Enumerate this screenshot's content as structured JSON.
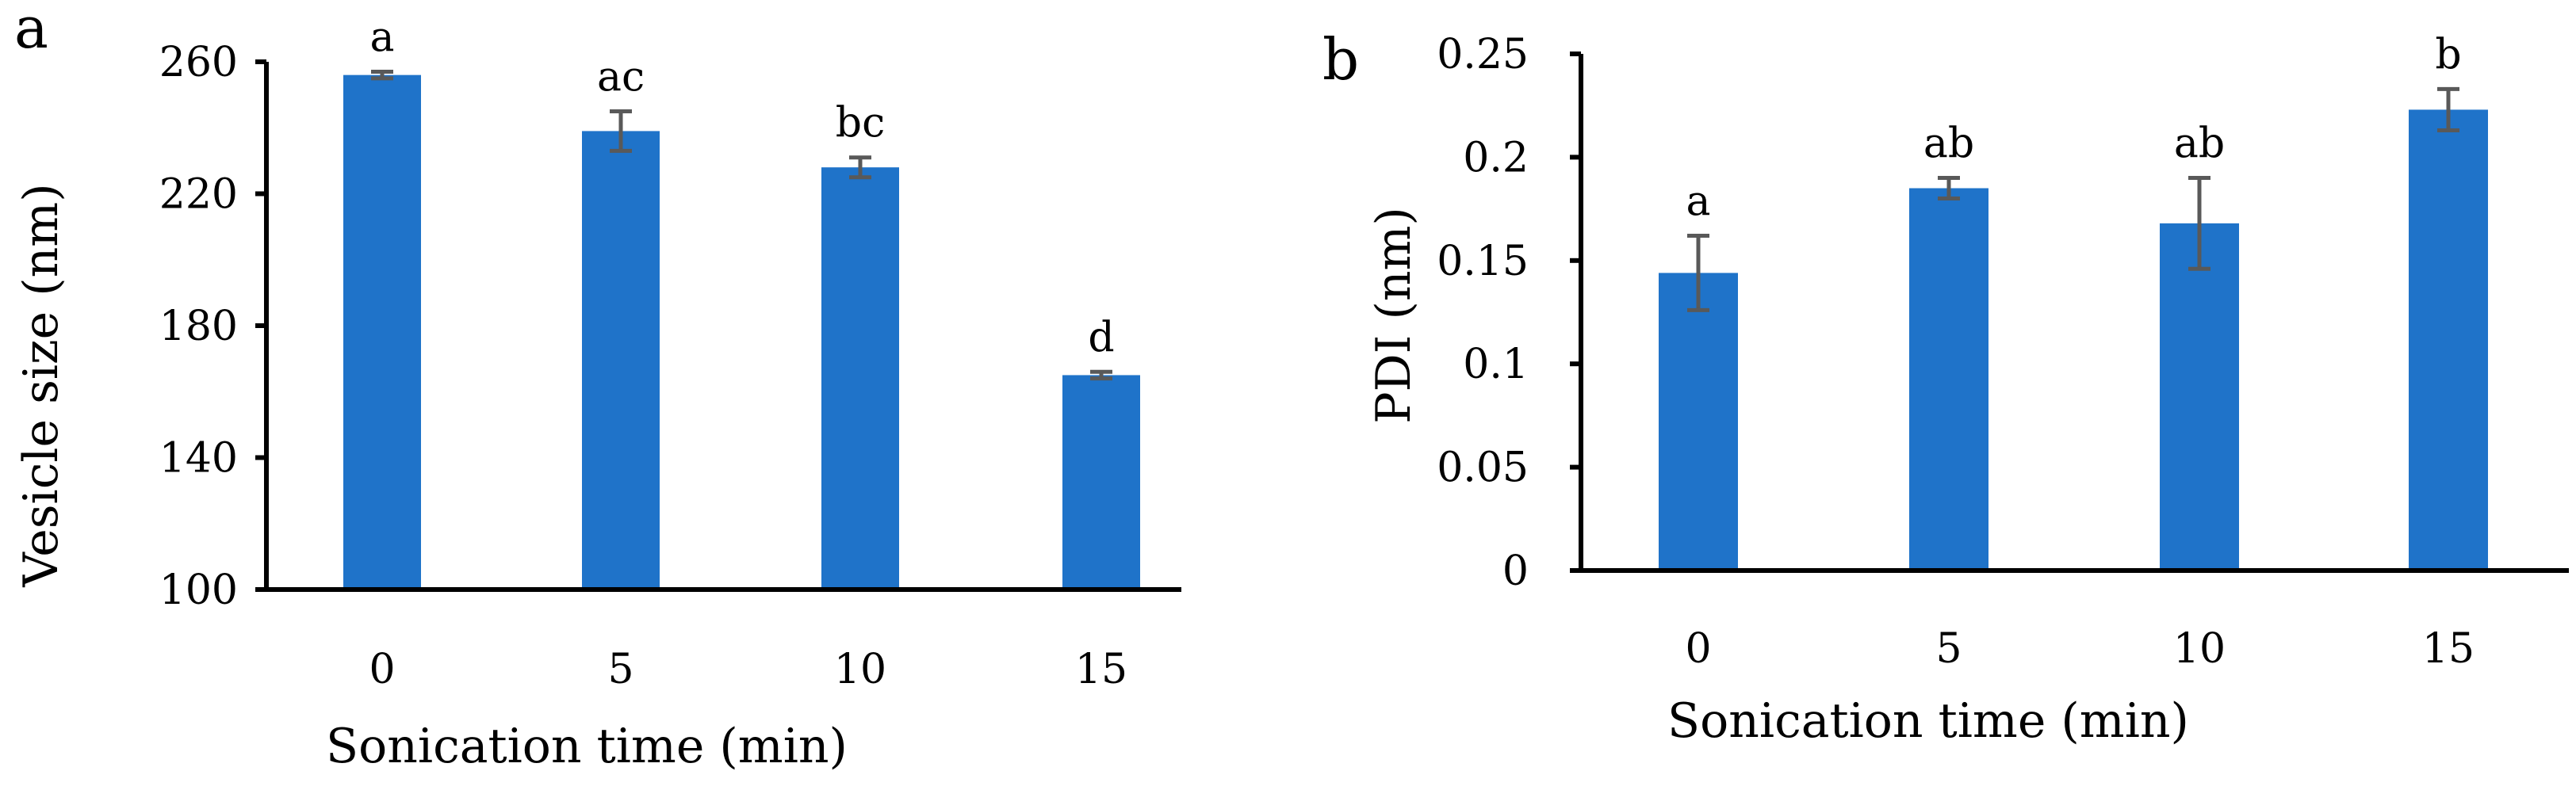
{
  "colors": {
    "bar": "#1f73c9",
    "error_bar": "#595959",
    "axis": "#000000"
  },
  "chart_data": [
    {
      "panel": "a",
      "type": "bar",
      "categories": [
        "0",
        "5",
        "10",
        "15"
      ],
      "values": [
        256,
        239,
        228,
        165
      ],
      "errors": [
        1,
        6,
        3,
        1
      ],
      "significance": [
        "a",
        "ac",
        "bc",
        "d"
      ],
      "xlabel": "Sonication time (min)",
      "ylabel": "Vesicle size (nm)",
      "ylim": [
        100,
        260
      ],
      "yticks": [
        "100",
        "140",
        "180",
        "220",
        "260"
      ],
      "grid": false
    },
    {
      "panel": "b",
      "type": "bar",
      "categories": [
        "0",
        "5",
        "10",
        "15"
      ],
      "values": [
        0.144,
        0.185,
        0.168,
        0.223
      ],
      "errors": [
        0.018,
        0.005,
        0.022,
        0.01
      ],
      "significance": [
        "a",
        "ab",
        "ab",
        "b"
      ],
      "xlabel": "Sonication time (min)",
      "ylabel": "PDI (nm)",
      "ylim": [
        0,
        0.25
      ],
      "yticks": [
        "0",
        "0.05",
        "0.1",
        "0.15",
        "0.2",
        "0.25"
      ],
      "grid": false
    }
  ]
}
